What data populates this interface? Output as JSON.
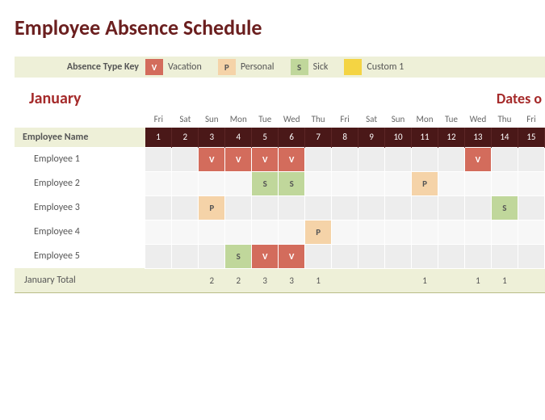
{
  "title": "Employee Absence Schedule",
  "legend": {
    "label": "Absence Type Key",
    "items": [
      {
        "code": "V",
        "label": "Vacation",
        "color": "#d36c5c",
        "textColor": "#fff"
      },
      {
        "code": "P",
        "label": "Personal",
        "color": "#f5d3a8",
        "textColor": "#555"
      },
      {
        "code": "S",
        "label": "Sick",
        "color": "#c0d79b",
        "textColor": "#555"
      },
      {
        "code": "",
        "label": "Custom 1",
        "color": "#f4d443",
        "textColor": "#555"
      }
    ]
  },
  "month": "January",
  "datesLabel": "Dates o",
  "nameHeader": "Employee Name",
  "dow": [
    "Fri",
    "Sat",
    "Sun",
    "Mon",
    "Tue",
    "Wed",
    "Thu",
    "Fri",
    "Sat",
    "Sun",
    "Mon",
    "Tue",
    "Wed",
    "Thu",
    "Fri"
  ],
  "days": [
    "1",
    "2",
    "3",
    "4",
    "5",
    "6",
    "7",
    "8",
    "9",
    "10",
    "11",
    "12",
    "13",
    "14",
    "15"
  ],
  "employees": [
    {
      "name": "Employee 1",
      "cells": [
        "",
        "",
        "V",
        "V",
        "V",
        "V",
        "",
        "",
        "",
        "",
        "",
        "",
        "V",
        "",
        ""
      ]
    },
    {
      "name": "Employee 2",
      "cells": [
        "",
        "",
        "",
        "",
        "S",
        "S",
        "",
        "",
        "",
        "",
        "P",
        "",
        "",
        "",
        ""
      ]
    },
    {
      "name": "Employee 3",
      "cells": [
        "",
        "",
        "P",
        "",
        "",
        "",
        "",
        "",
        "",
        "",
        "",
        "",
        "",
        "S",
        ""
      ]
    },
    {
      "name": "Employee 4",
      "cells": [
        "",
        "",
        "",
        "",
        "",
        "",
        "P",
        "",
        "",
        "",
        "",
        "",
        "",
        "",
        ""
      ]
    },
    {
      "name": "Employee 5",
      "cells": [
        "",
        "",
        "",
        "S",
        "V",
        "V",
        "",
        "",
        "",
        "",
        "",
        "",
        "",
        "",
        ""
      ]
    }
  ],
  "totalLabel": "January Total",
  "totals": [
    "",
    "",
    "2",
    "2",
    "3",
    "3",
    "1",
    "",
    "",
    "",
    "1",
    "",
    "1",
    "1",
    ""
  ],
  "colors": {
    "V": "v-cell",
    "P": "p-cell",
    "S": "s-cell"
  }
}
